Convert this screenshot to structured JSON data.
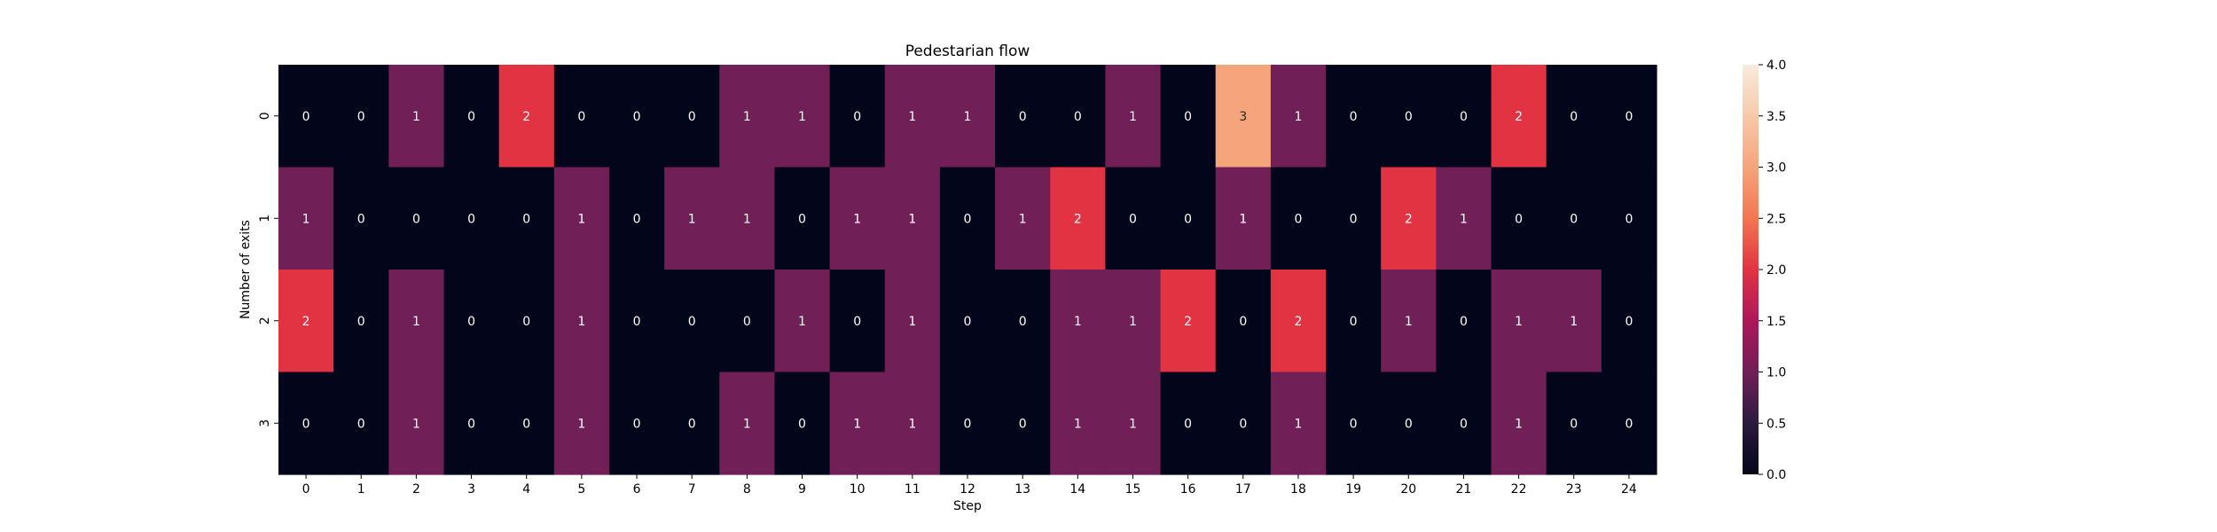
{
  "chart_data": {
    "type": "heatmap",
    "title": "Pedestarian flow",
    "xlabel": "Step",
    "ylabel": "Number of exits",
    "x_categories": [
      "0",
      "1",
      "2",
      "3",
      "4",
      "5",
      "6",
      "7",
      "8",
      "9",
      "10",
      "11",
      "12",
      "13",
      "14",
      "15",
      "16",
      "17",
      "18",
      "19",
      "20",
      "21",
      "22",
      "23",
      "24"
    ],
    "y_categories": [
      "0",
      "1",
      "2",
      "3"
    ],
    "values": [
      [
        0,
        0,
        1,
        0,
        2,
        0,
        0,
        0,
        1,
        1,
        0,
        1,
        1,
        0,
        0,
        1,
        0,
        3,
        1,
        0,
        0,
        0,
        2,
        0,
        0
      ],
      [
        1,
        0,
        0,
        0,
        0,
        1,
        0,
        1,
        1,
        0,
        1,
        1,
        0,
        1,
        2,
        0,
        0,
        1,
        0,
        0,
        2,
        1,
        0,
        0,
        0
      ],
      [
        2,
        0,
        1,
        0,
        0,
        1,
        0,
        0,
        0,
        1,
        0,
        1,
        0,
        0,
        1,
        1,
        2,
        0,
        2,
        0,
        1,
        0,
        1,
        1,
        0
      ],
      [
        0,
        0,
        1,
        0,
        0,
        1,
        0,
        0,
        1,
        0,
        1,
        1,
        0,
        0,
        1,
        1,
        0,
        0,
        1,
        0,
        0,
        0,
        1,
        0,
        0
      ]
    ],
    "annotate": true,
    "colorbar": {
      "range": [
        0,
        4
      ],
      "ticks": [
        "0.0",
        "0.5",
        "1.0",
        "1.5",
        "2.0",
        "2.5",
        "3.0",
        "3.5",
        "4.0"
      ],
      "colormap": "rocket"
    }
  }
}
